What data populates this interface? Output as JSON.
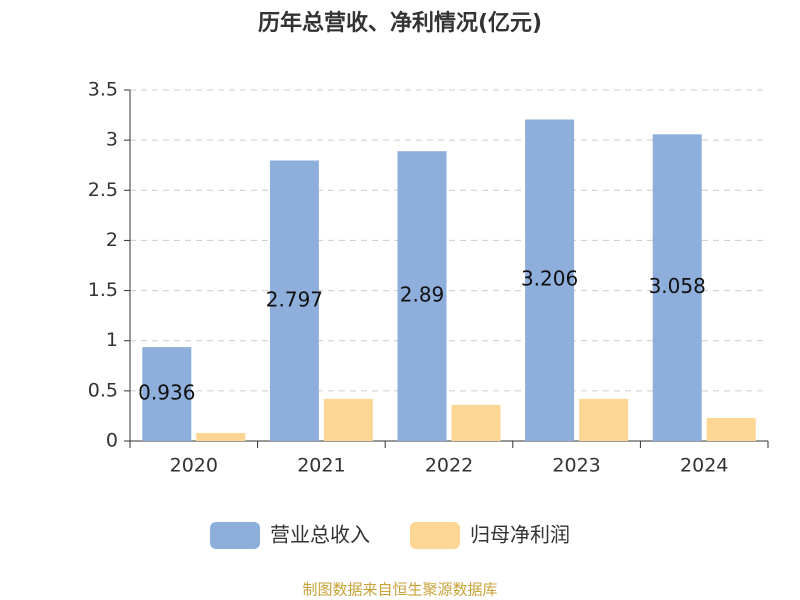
{
  "chart_data": {
    "type": "bar",
    "title": "历年总营收、净利情况(亿元)",
    "categories": [
      "2020",
      "2021",
      "2022",
      "2023",
      "2024"
    ],
    "series": [
      {
        "name": "营业总收入",
        "color": "#8eaedc",
        "values": [
          0.936,
          2.797,
          2.89,
          3.206,
          3.058
        ],
        "show_labels": true
      },
      {
        "name": "归母净利润",
        "color": "#fdd693",
        "values": [
          0.08,
          0.42,
          0.36,
          0.42,
          0.23
        ],
        "show_labels": false
      }
    ],
    "ylim": [
      0,
      3.5
    ],
    "yticks": [
      0,
      0.5,
      1,
      1.5,
      2,
      2.5,
      3,
      3.5
    ],
    "grid": true,
    "legend": "bottom",
    "source": "制图数据来自恒生聚源数据库"
  }
}
